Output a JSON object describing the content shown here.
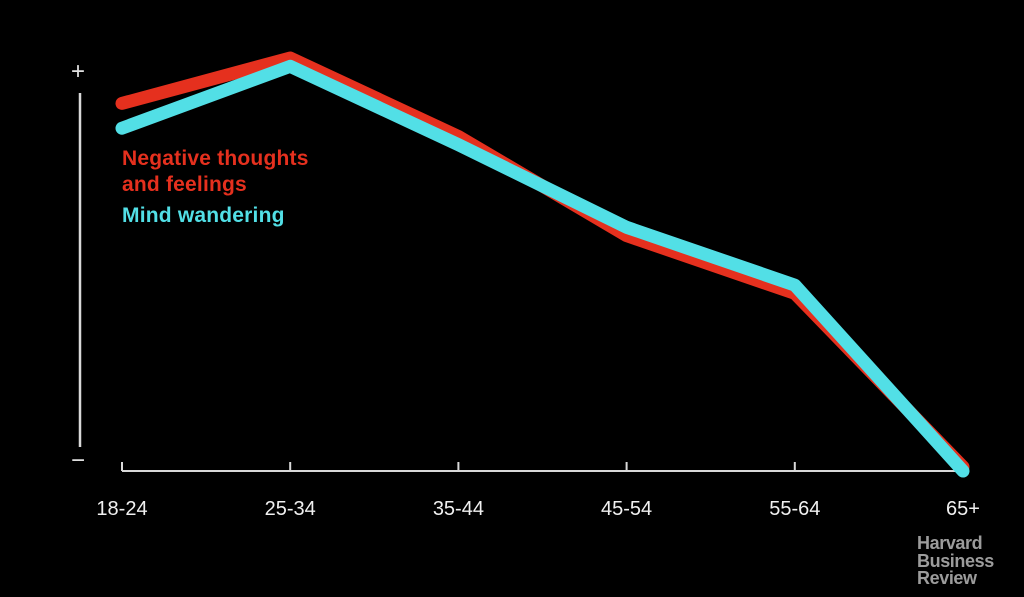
{
  "chart_data": {
    "type": "line",
    "categories": [
      "18-24",
      "25-34",
      "35-44",
      "45-54",
      "55-64",
      "65+"
    ],
    "series": [
      {
        "name": "Negative thoughts and feelings",
        "color": "#e5301e",
        "values": [
          89,
          100,
          81,
          57,
          43,
          1
        ]
      },
      {
        "name": "Mind wandering",
        "color": "#52dfe6",
        "values": [
          83,
          98,
          79,
          59,
          45,
          0
        ]
      }
    ],
    "title": "",
    "xlabel": "",
    "ylabel": "",
    "ylim": [
      0,
      100
    ],
    "grid": false,
    "legend_position": "inside-upper-left",
    "y_axis": {
      "top_label": "+",
      "bottom_label": "−"
    }
  },
  "colors": {
    "background": "#000000",
    "axis": "#d9d9d9",
    "tick_label": "#f0f0f0",
    "logo_text": "#9c9c9c"
  },
  "logo": {
    "lines": [
      "Harvard",
      "Business",
      "Review"
    ]
  }
}
